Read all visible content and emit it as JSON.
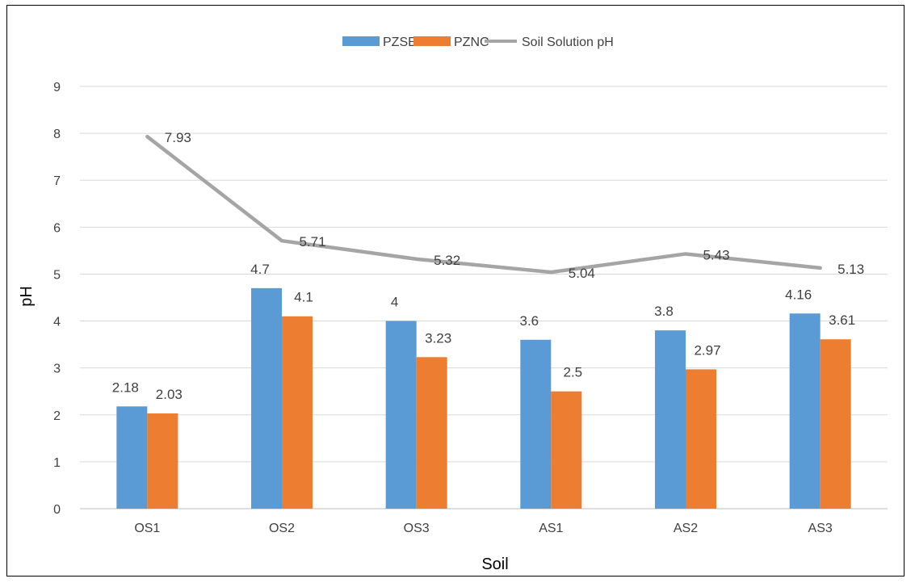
{
  "chart_data": {
    "type": "bar",
    "categories": [
      "OS1",
      "OS2",
      "OS3",
      "AS1",
      "AS2",
      "AS3"
    ],
    "series": [
      {
        "name": "PZSE",
        "kind": "bar",
        "color": "#5b9bd5",
        "values": [
          2.18,
          4.7,
          4,
          3.6,
          3.8,
          4.16
        ]
      },
      {
        "name": "PZNC",
        "kind": "bar",
        "color": "#ed7d31",
        "values": [
          2.03,
          4.1,
          3.23,
          2.5,
          2.97,
          3.61
        ]
      },
      {
        "name": "Soil Solution pH",
        "kind": "line",
        "color": "#a5a5a5",
        "values": [
          7.93,
          5.71,
          5.32,
          5.04,
          5.43,
          5.13
        ]
      }
    ],
    "xlabel": "Soil",
    "ylabel": "pH",
    "ylim": [
      0,
      9
    ],
    "yticks": [
      0,
      1,
      2,
      3,
      4,
      5,
      6,
      7,
      8,
      9
    ],
    "grid": true,
    "legend_position": "top-center",
    "data_labels": true
  }
}
